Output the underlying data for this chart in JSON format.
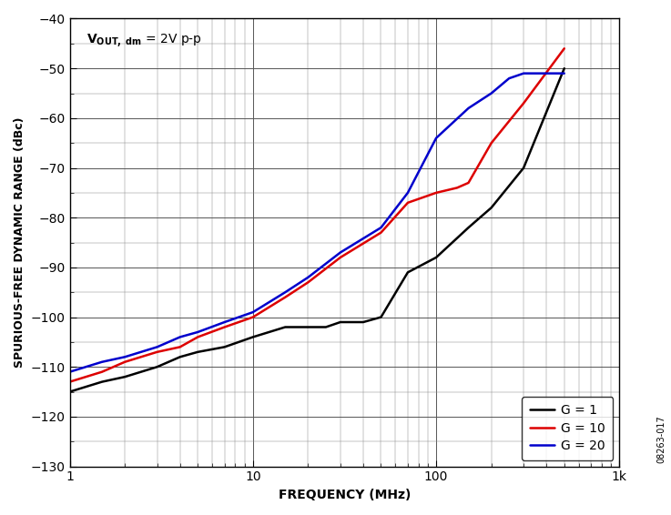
{
  "xlabel": "FREQUENCY (MHz)",
  "ylabel": "SPURIOUS-FREE DYNAMIC RANGE (dBc)",
  "xlim": [
    1,
    1000
  ],
  "ylim": [
    -130,
    -40
  ],
  "yticks": [
    -130,
    -120,
    -110,
    -100,
    -90,
    -80,
    -70,
    -60,
    -50,
    -40
  ],
  "watermark": "08263-017",
  "g1_color": "#000000",
  "g10_color": "#dd0000",
  "g20_color": "#0000cc",
  "g1_freq": [
    1,
    1.5,
    2,
    3,
    4,
    5,
    7,
    10,
    15,
    20,
    25,
    30,
    40,
    50,
    70,
    100,
    150,
    200,
    300,
    500
  ],
  "g1_sfdr": [
    -115,
    -113,
    -112,
    -110,
    -108,
    -107,
    -106,
    -104,
    -102,
    -102,
    -102,
    -101,
    -101,
    -100,
    -91,
    -88,
    -82,
    -78,
    -70,
    -50
  ],
  "g10_freq": [
    1,
    1.5,
    2,
    3,
    4,
    5,
    7,
    10,
    15,
    20,
    30,
    50,
    70,
    100,
    130,
    150,
    200,
    300,
    500
  ],
  "g10_sfdr": [
    -113,
    -111,
    -109,
    -107,
    -106,
    -104,
    -102,
    -100,
    -96,
    -93,
    -88,
    -83,
    -77,
    -75,
    -74,
    -73,
    -65,
    -57,
    -46
  ],
  "g20_freq": [
    1,
    1.5,
    2,
    3,
    4,
    5,
    7,
    10,
    15,
    20,
    30,
    50,
    70,
    100,
    150,
    200,
    250,
    300,
    400,
    500
  ],
  "g20_sfdr": [
    -111,
    -109,
    -108,
    -106,
    -104,
    -103,
    -101,
    -99,
    -95,
    -92,
    -87,
    -82,
    -75,
    -64,
    -58,
    -55,
    -52,
    -51,
    -51,
    -51
  ]
}
